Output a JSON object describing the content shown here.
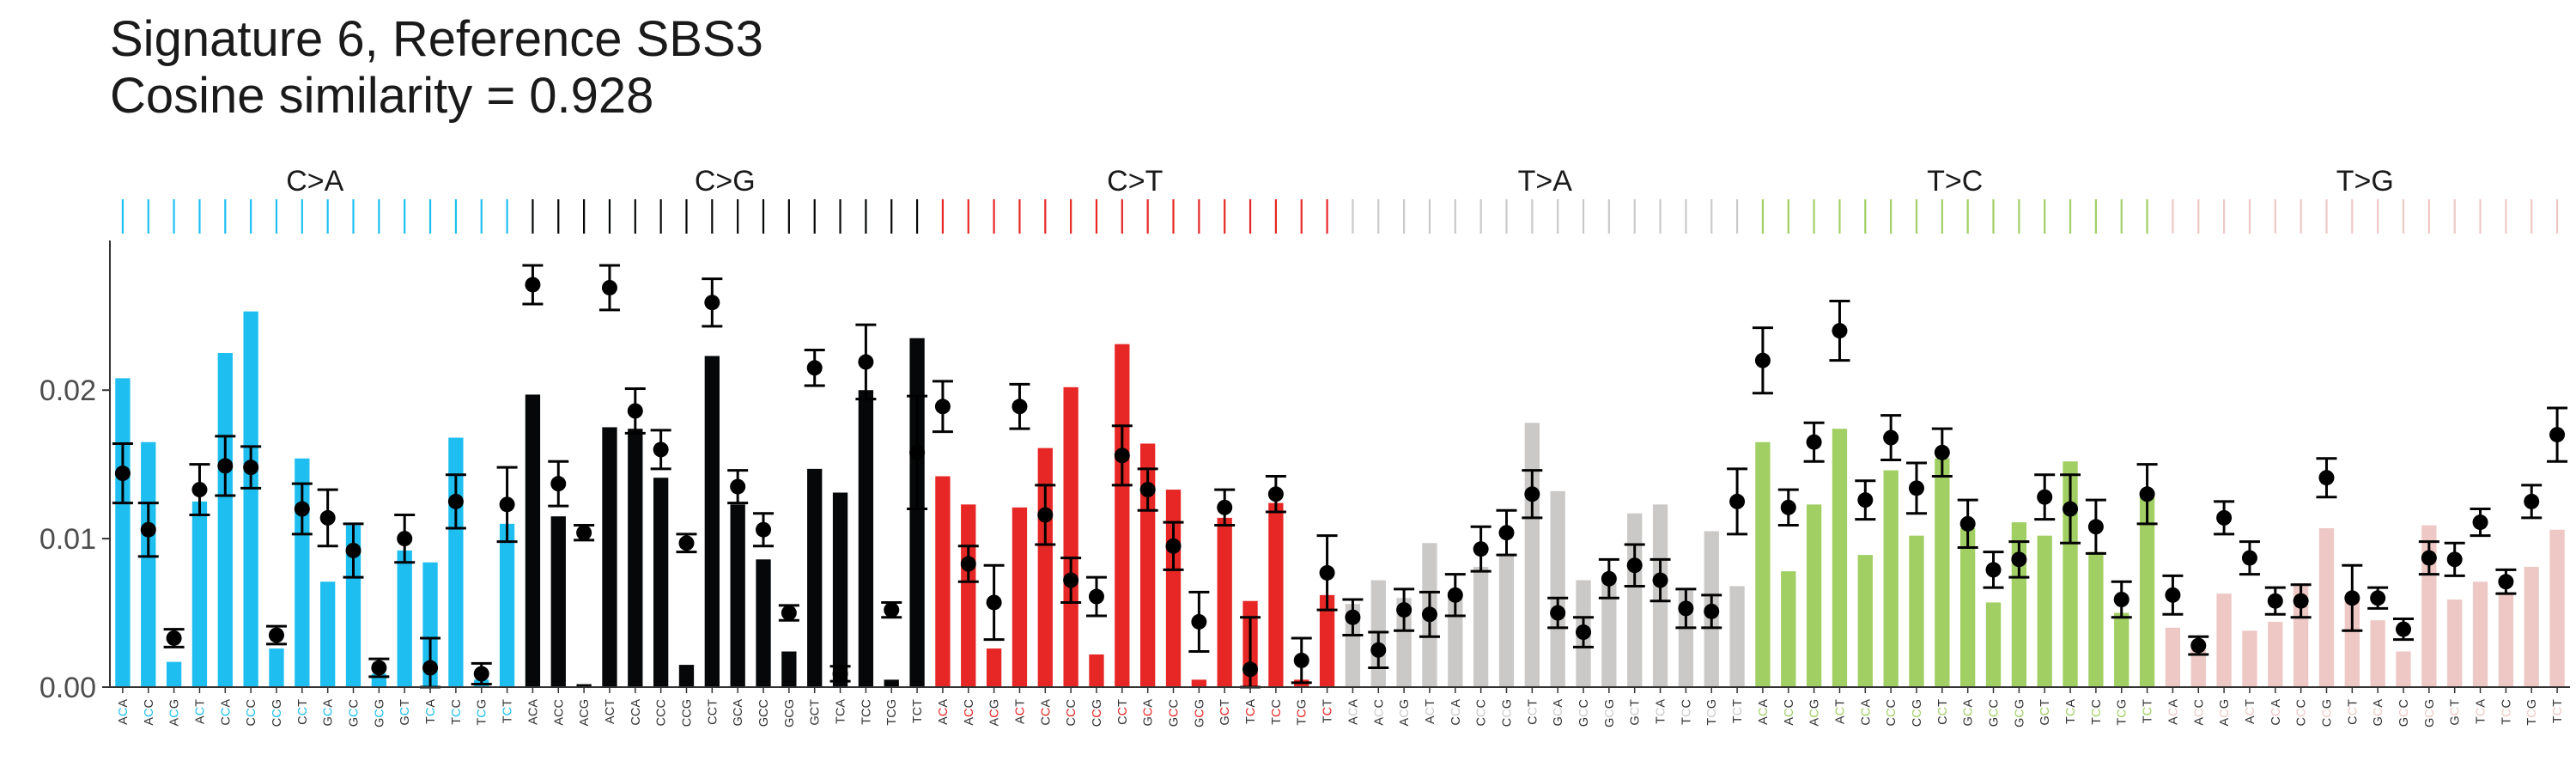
{
  "title": {
    "line1": "Signature 6, Reference SBS3",
    "line2": "Cosine similarity = 0.928"
  },
  "chart_data": {
    "type": "bar",
    "title": "Signature 6, Reference SBS3",
    "subtitle": "Cosine similarity = 0.928",
    "xlabel": "",
    "ylabel": "",
    "ylim": [
      0,
      0.0295
    ],
    "y_ticks": [
      0.0,
      0.01,
      0.02
    ],
    "y_tick_labels": [
      "0.00",
      "0.01",
      "0.02"
    ],
    "grid": false,
    "contexts": [
      "ACA",
      "ACC",
      "ACG",
      "ACT",
      "CCA",
      "CCC",
      "CCG",
      "CCT",
      "GCA",
      "GCC",
      "GCG",
      "GCT",
      "TCA",
      "TCC",
      "TCG",
      "TCT"
    ],
    "groups": [
      {
        "name": "C>A",
        "color": "#1EBFF0",
        "bars": [
          0.0208,
          0.0165,
          0.0017,
          0.0125,
          0.0225,
          0.0253,
          0.0026,
          0.0154,
          0.0071,
          0.0109,
          0.0009,
          0.0092,
          0.0084,
          0.0168,
          0.0005,
          0.011
        ],
        "points": [
          0.0144,
          0.0106,
          0.0033,
          0.0133,
          0.0149,
          0.0148,
          0.0035,
          0.012,
          0.0114,
          0.0092,
          0.0013,
          0.01,
          0.0013,
          0.0125,
          0.0009,
          0.0123
        ],
        "errors": [
          0.002,
          0.0018,
          0.0006,
          0.0017,
          0.002,
          0.0014,
          0.0006,
          0.0017,
          0.0019,
          0.0018,
          0.0006,
          0.0016,
          0.002,
          0.0018,
          0.0007,
          0.0025
        ]
      },
      {
        "name": "C>G",
        "color": "#050708",
        "bars": [
          0.0197,
          0.0115,
          0.0002,
          0.0175,
          0.0174,
          0.0141,
          0.0015,
          0.0223,
          0.0123,
          0.0086,
          0.0024,
          0.0147,
          0.0131,
          0.02,
          0.0005,
          0.0235
        ],
        "points": [
          0.0271,
          0.0137,
          0.0104,
          0.0269,
          0.0186,
          0.016,
          0.0097,
          0.0259,
          0.0135,
          0.0106,
          0.005,
          0.0215,
          0.0009,
          0.0219,
          0.0052,
          0.0158
        ],
        "errors": [
          0.0013,
          0.0015,
          0.0005,
          0.0015,
          0.0015,
          0.0013,
          0.0006,
          0.0016,
          0.0011,
          0.0011,
          0.0005,
          0.0012,
          0.0005,
          0.0025,
          0.0005,
          0.0038
        ]
      },
      {
        "name": "C>T",
        "color": "#E62725",
        "bars": [
          0.0142,
          0.0123,
          0.0026,
          0.0121,
          0.0161,
          0.0202,
          0.0022,
          0.0231,
          0.0164,
          0.0133,
          0.0005,
          0.0114,
          0.0058,
          0.0124,
          0.0005,
          0.0062
        ],
        "points": [
          0.0189,
          0.0083,
          0.0057,
          0.0189,
          0.0116,
          0.0072,
          0.0061,
          0.0156,
          0.0133,
          0.0095,
          0.0044,
          0.0121,
          0.0012,
          0.013,
          0.0018,
          0.0077
        ],
        "errors": [
          0.0017,
          0.0012,
          0.0025,
          0.0015,
          0.002,
          0.0015,
          0.0013,
          0.002,
          0.0014,
          0.0016,
          0.002,
          0.0012,
          0.0035,
          0.0012,
          0.0015,
          0.0025
        ]
      },
      {
        "name": "T>A",
        "color": "#CBC9C8",
        "bars": [
          0.0056,
          0.0072,
          0.006,
          0.0097,
          0.0064,
          0.0081,
          0.009,
          0.0178,
          0.0132,
          0.0072,
          0.0075,
          0.0117,
          0.0123,
          0.0065,
          0.0105,
          0.0068
        ],
        "points": [
          0.0047,
          0.0025,
          0.0052,
          0.0049,
          0.0062,
          0.0093,
          0.0104,
          0.013,
          0.005,
          0.0037,
          0.0073,
          0.0082,
          0.0072,
          0.0053,
          0.0051,
          0.0125
        ],
        "errors": [
          0.0012,
          0.0012,
          0.0014,
          0.0015,
          0.0014,
          0.0015,
          0.0015,
          0.0016,
          0.001,
          0.001,
          0.0013,
          0.0014,
          0.0014,
          0.0013,
          0.0011,
          0.0022
        ]
      },
      {
        "name": "T>C",
        "color": "#A1CF64",
        "bars": [
          0.0165,
          0.0078,
          0.0123,
          0.0174,
          0.0089,
          0.0146,
          0.0102,
          0.0154,
          0.0107,
          0.0057,
          0.0111,
          0.0102,
          0.0152,
          0.0091,
          0.005,
          0.013
        ],
        "points": [
          0.022,
          0.0121,
          0.0165,
          0.024,
          0.0126,
          0.0168,
          0.0134,
          0.0158,
          0.011,
          0.0079,
          0.0086,
          0.0128,
          0.012,
          0.0108,
          0.0059,
          0.013
        ],
        "errors": [
          0.0022,
          0.0012,
          0.0013,
          0.002,
          0.0013,
          0.0015,
          0.0017,
          0.0016,
          0.0016,
          0.0012,
          0.0012,
          0.0015,
          0.0023,
          0.0018,
          0.0012,
          0.002
        ]
      },
      {
        "name": "T>G",
        "color": "#EDC8C5",
        "bars": [
          0.004,
          0.0031,
          0.0063,
          0.0038,
          0.0044,
          0.007,
          0.0107,
          0.0061,
          0.0045,
          0.0024,
          0.0109,
          0.0059,
          0.0071,
          0.0064,
          0.0081,
          0.0106
        ],
        "points": [
          0.0062,
          0.0028,
          0.0114,
          0.0087,
          0.0058,
          0.0058,
          0.0141,
          0.006,
          0.006,
          0.0039,
          0.0087,
          0.0086,
          0.0111,
          0.0071,
          0.0125,
          0.017
        ],
        "errors": [
          0.0013,
          0.0006,
          0.0011,
          0.0011,
          0.0009,
          0.0011,
          0.0013,
          0.0022,
          0.0007,
          0.0007,
          0.0011,
          0.0011,
          0.0009,
          0.0008,
          0.0011,
          0.0018
        ]
      }
    ]
  }
}
